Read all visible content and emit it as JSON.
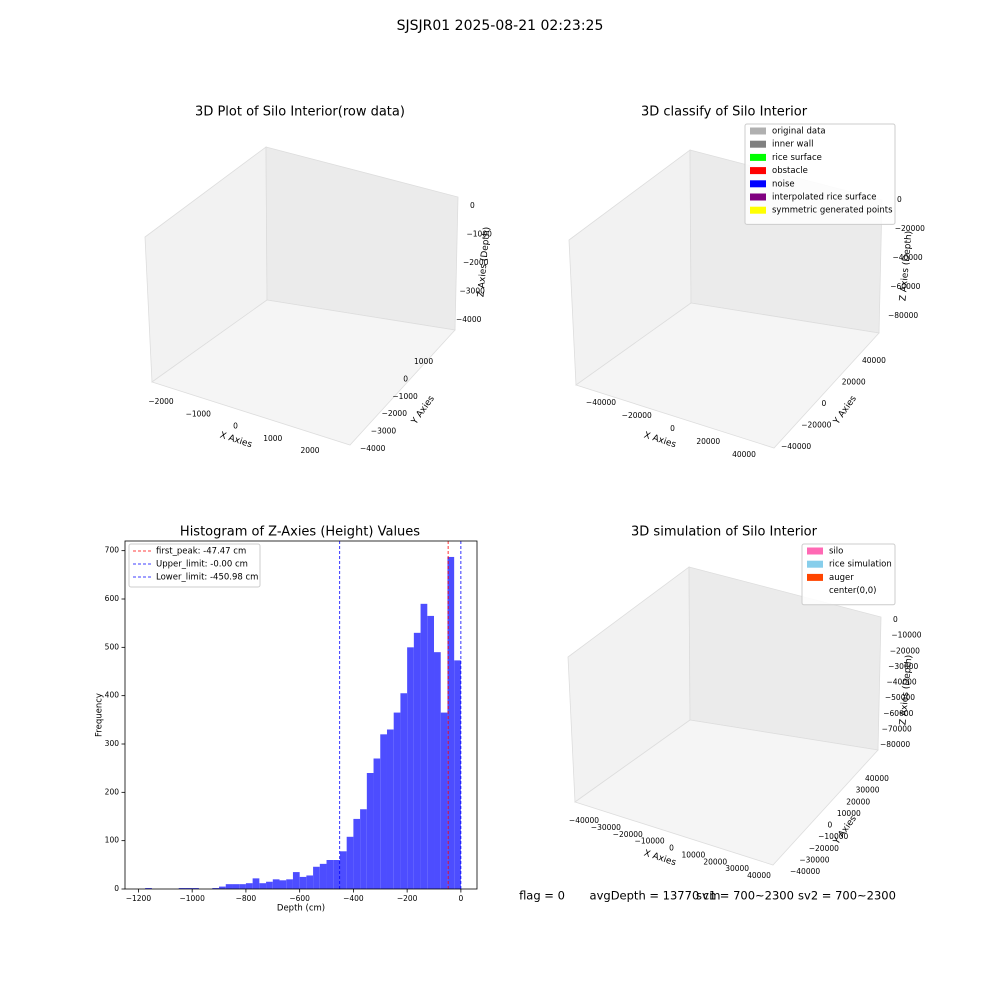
{
  "title": "SJSJR01 2025-08-21 02:23:25",
  "chart_data": [
    {
      "type": "scatter3d",
      "title": "3D Plot of Silo Interior(row data)",
      "xlabel": "X Axies",
      "ylabel": "Y Axies",
      "zlabel": "Z Axies (Depth)",
      "xticks": [
        {
          "value": -2000,
          "label": "−2000"
        },
        {
          "value": -1000,
          "label": "−1000"
        },
        0,
        1000,
        2000
      ],
      "yticks": [
        1000,
        0,
        {
          "value": -1000,
          "label": "−1000"
        },
        {
          "value": -2000,
          "label": "−2000"
        },
        {
          "value": -3000,
          "label": "−3000"
        },
        {
          "value": -4000,
          "label": "−4000"
        }
      ],
      "zticks": [
        0,
        {
          "value": -1000,
          "label": "−1000"
        },
        {
          "value": -2000,
          "label": "−2000"
        },
        {
          "value": -3000,
          "label": "−3000"
        },
        {
          "value": -4000,
          "label": "−4000"
        }
      ]
    },
    {
      "type": "scatter3d",
      "title": "3D classify of Silo Interior",
      "xlabel": "X Axies",
      "ylabel": "Y Axies",
      "zlabel": "Z Axies (Depth)",
      "xticks": [
        {
          "value": -40000,
          "label": "−40000"
        },
        {
          "value": -20000,
          "label": "−20000"
        },
        0,
        20000,
        40000
      ],
      "yticks": [
        40000,
        20000,
        0,
        {
          "value": -20000,
          "label": "−20000"
        },
        {
          "value": -40000,
          "label": "−40000"
        }
      ],
      "zticks": [
        0,
        {
          "value": -20000,
          "label": "−20000"
        },
        {
          "value": -40000,
          "label": "−40000"
        },
        {
          "value": -60000,
          "label": "−60000"
        },
        {
          "value": -80000,
          "label": "−80000"
        }
      ],
      "legend": [
        {
          "label": "original data",
          "color": "#b0b0b0"
        },
        {
          "label": "inner wall",
          "color": "#808080"
        },
        {
          "label": "rice surface",
          "color": "#00ff00"
        },
        {
          "label": "obstacle",
          "color": "#ff0000"
        },
        {
          "label": "noise",
          "color": "#0000ff"
        },
        {
          "label": "interpolated rice surface",
          "color": "#800080"
        },
        {
          "label": "symmetric generated points",
          "color": "#ffff00"
        }
      ]
    },
    {
      "type": "histogram",
      "title": "Histogram of Z-Axies (Height) Values",
      "xlabel": "Depth (cm)",
      "ylabel": "Frequency",
      "color": "#4d4dff",
      "bins": [
        -1175,
        -1150,
        -1125,
        -1100,
        -1075,
        -1050,
        -1025,
        -1000,
        -975,
        -950,
        -925,
        -900,
        -875,
        -850,
        -825,
        -800,
        -775,
        -750,
        -725,
        -700,
        -675,
        -650,
        -625,
        -600,
        -575,
        -550,
        -525,
        -500,
        -475,
        -450,
        -425,
        -400,
        -375,
        -350,
        -325,
        -300,
        -275,
        -250,
        -225,
        -200,
        -175,
        -150,
        -125,
        -100,
        -75,
        -50,
        -25,
        0
      ],
      "counts": [
        2,
        0,
        0,
        0,
        0,
        2,
        2,
        2,
        0,
        0,
        2,
        5,
        10,
        10,
        10,
        12,
        22,
        12,
        15,
        20,
        18,
        20,
        35,
        25,
        28,
        46,
        52,
        60,
        60,
        78,
        108,
        145,
        165,
        240,
        270,
        320,
        330,
        365,
        405,
        500,
        530,
        590,
        565,
        490,
        365,
        687,
        473
      ],
      "xlim": [
        -1250,
        60
      ],
      "ylim": [
        0,
        720
      ],
      "xticks": [
        {
          "value": -1200,
          "label": "−1200"
        },
        {
          "value": -1000,
          "label": "−1000"
        },
        {
          "value": -800,
          "label": "−800"
        },
        {
          "value": -600,
          "label": "−600"
        },
        {
          "value": -400,
          "label": "−400"
        },
        {
          "value": -200,
          "label": "−200"
        },
        0
      ],
      "yticks": [
        0,
        100,
        200,
        300,
        400,
        500,
        600,
        700
      ],
      "vlines": [
        {
          "label": "first_peak: -47.47 cm",
          "value": -47.47,
          "color": "#ff0000"
        },
        {
          "label": "Upper_limit: -0.00 cm",
          "value": -0.0,
          "color": "#0000ff"
        },
        {
          "label": "Lower_limit: -450.98 cm",
          "value": -450.98,
          "color": "#0000ff"
        }
      ]
    },
    {
      "type": "scatter3d",
      "title": "3D simulation of Silo Interior",
      "xlabel": "X Axies",
      "ylabel": "Y Axies",
      "zlabel": "Z Axies (Depth)",
      "xticks": [
        {
          "value": -40000,
          "label": "−40000"
        },
        {
          "value": -30000,
          "label": "−30000"
        },
        {
          "value": -20000,
          "label": "−20000"
        },
        {
          "value": -10000,
          "label": "−10000"
        },
        0,
        10000,
        20000,
        30000,
        40000
      ],
      "yticks": [
        40000,
        30000,
        20000,
        10000,
        0,
        {
          "value": -10000,
          "label": "−10000"
        },
        {
          "value": -20000,
          "label": "−20000"
        },
        {
          "value": -30000,
          "label": "−30000"
        },
        {
          "value": -40000,
          "label": "−40000"
        }
      ],
      "zticks": [
        0,
        {
          "value": -10000,
          "label": "−10000"
        },
        {
          "value": -20000,
          "label": "−20000"
        },
        {
          "value": -30000,
          "label": "−30000"
        },
        {
          "value": -40000,
          "label": "−40000"
        },
        {
          "value": -50000,
          "label": "−50000"
        },
        {
          "value": -60000,
          "label": "−60000"
        },
        {
          "value": -70000,
          "label": "−70000"
        },
        {
          "value": -80000,
          "label": "−80000"
        }
      ],
      "legend": [
        {
          "label": "silo",
          "color": "#ff69b4"
        },
        {
          "label": "rice simulation",
          "color": "#87ceeb"
        },
        {
          "label": "auger",
          "color": "#ff4500"
        },
        {
          "label": "center(0,0)",
          "color": "#ffffff"
        }
      ]
    }
  ],
  "status": [
    "flag = 0",
    "avgDepth = 13770 cm",
    "sv1 = 700~2300",
    "sv2 = 700~2300"
  ]
}
